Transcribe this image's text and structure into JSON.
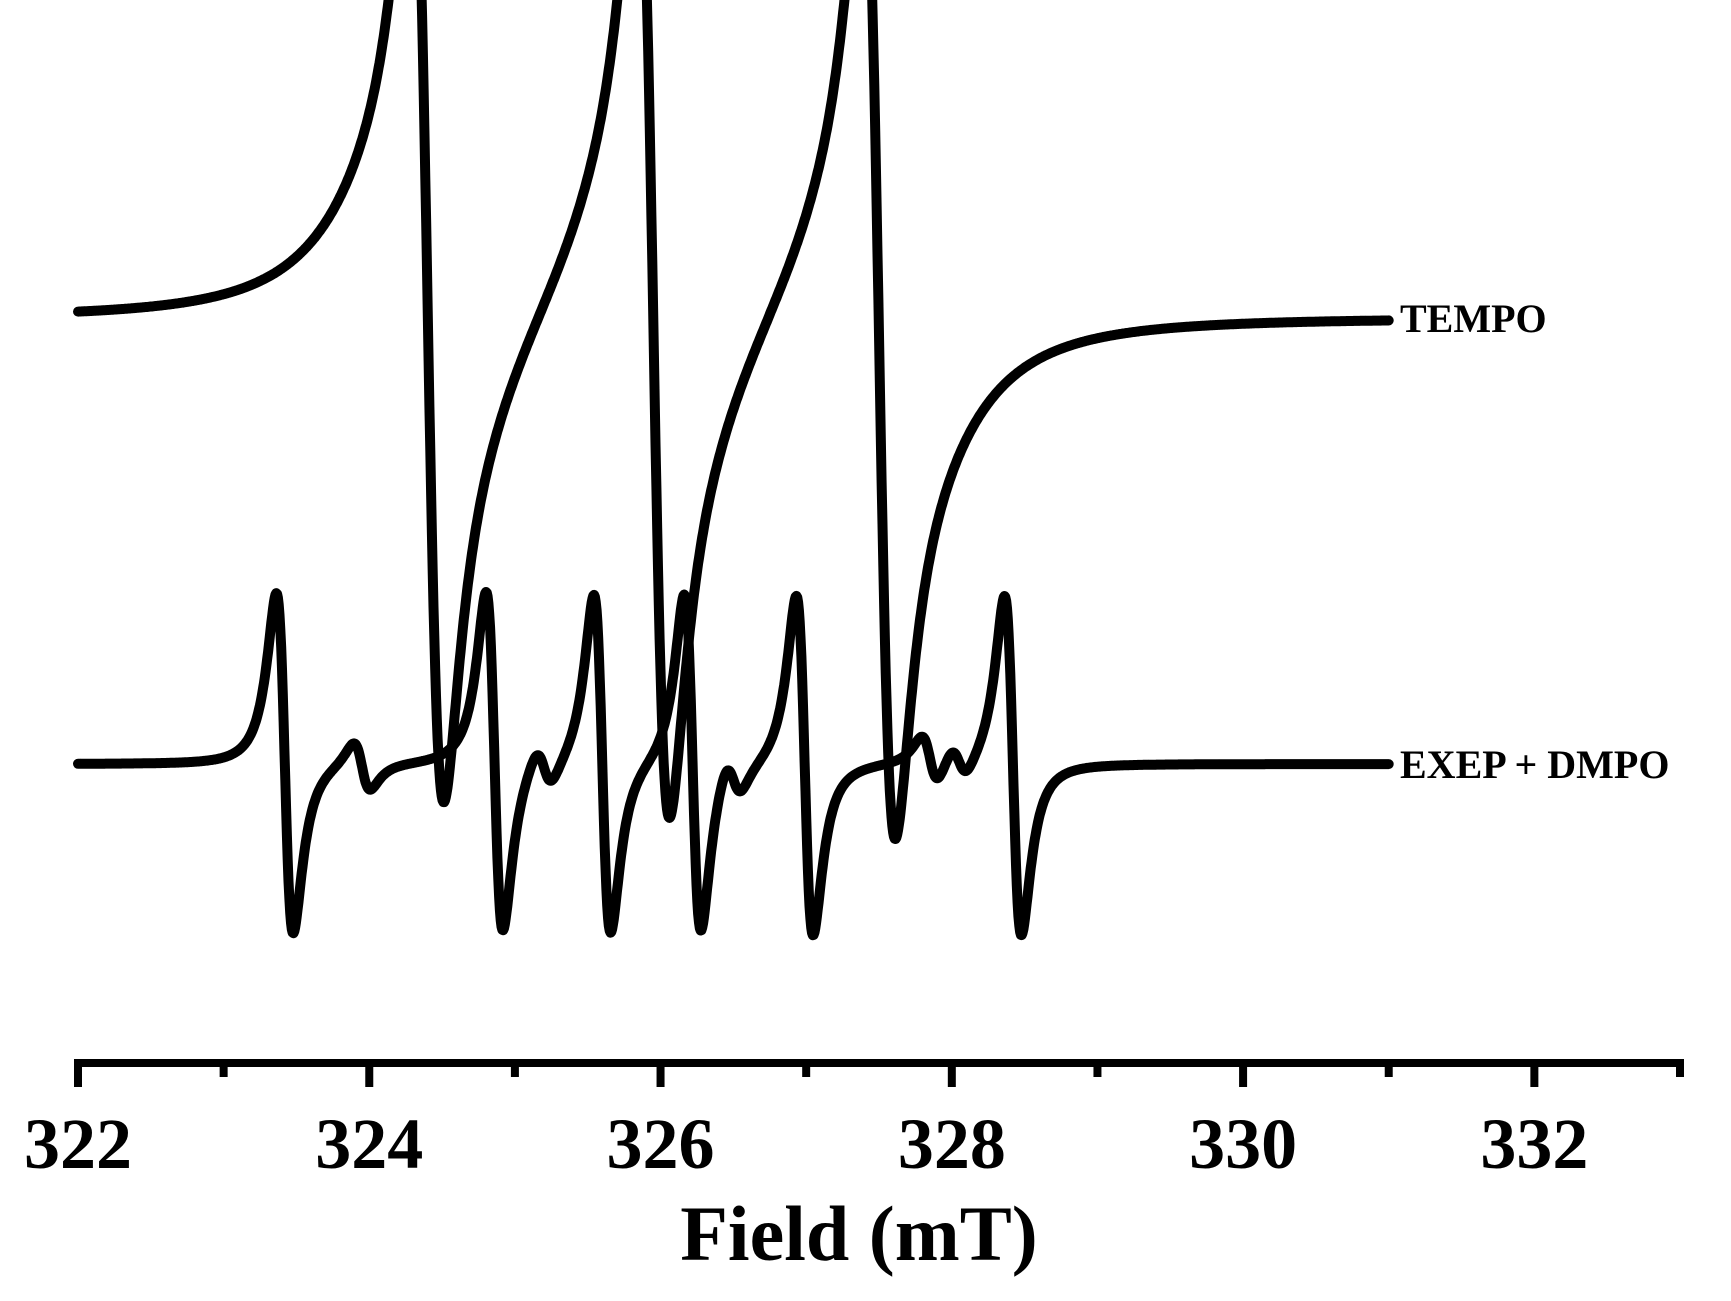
{
  "chart_data": {
    "type": "line",
    "xlabel": "Field (mT)",
    "ylabel": "",
    "xlim": [
      322,
      333
    ],
    "x_ticks": [
      322,
      324,
      326,
      328,
      330,
      332
    ],
    "x_minor_ticks": [
      323,
      325,
      327,
      329,
      331,
      333
    ],
    "y_ticks_shown": false,
    "grid": false,
    "legend": "inline-right",
    "series": [
      {
        "name": "TEMPO",
        "x_range": [
          322,
          331
        ],
        "baseline": 0,
        "lines": [
          {
            "center": 324.4,
            "amplitude": 110,
            "width": 0.18,
            "tail": 0.55
          },
          {
            "center": 325.95,
            "amplitude": 110,
            "width": 0.18,
            "tail": 0.55
          },
          {
            "center": 327.5,
            "amplitude": 110,
            "width": 0.18,
            "tail": 0.55
          }
        ]
      },
      {
        "name": "EXEP + DMPO",
        "x_range": [
          322,
          331
        ],
        "baseline": 0,
        "lines": [
          {
            "center": 323.42,
            "amplitude": 42,
            "width": 0.1
          },
          {
            "center": 324.86,
            "amplitude": 42,
            "width": 0.1
          },
          {
            "center": 325.6,
            "amplitude": 42,
            "width": 0.1
          },
          {
            "center": 326.22,
            "amplitude": 42,
            "width": 0.1
          },
          {
            "center": 326.99,
            "amplitude": 42,
            "width": 0.1
          },
          {
            "center": 328.42,
            "amplitude": 42,
            "width": 0.1
          },
          {
            "center": 323.95,
            "amplitude": 6,
            "width": 0.1
          },
          {
            "center": 325.2,
            "amplitude": 5,
            "width": 0.1
          },
          {
            "center": 326.5,
            "amplitude": 5,
            "width": 0.1
          },
          {
            "center": 327.85,
            "amplitude": 6,
            "width": 0.1
          },
          {
            "center": 328.05,
            "amplitude": 4,
            "width": 0.1
          }
        ]
      }
    ]
  }
}
